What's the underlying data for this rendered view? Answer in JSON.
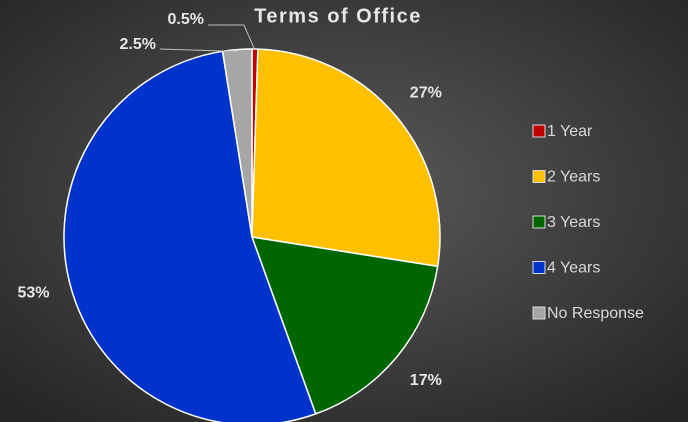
{
  "chart_data": {
    "type": "pie",
    "title": "Terms of Office",
    "categories": [
      "1 Year",
      "2 Years",
      "3 Years",
      "4 Years",
      "No Response"
    ],
    "values": [
      0.5,
      27,
      17,
      53,
      2.5
    ],
    "value_labels": [
      "0.5%",
      "27%",
      "17%",
      "53%",
      "2.5%"
    ],
    "colors": [
      "#c00000",
      "#ffc000",
      "#006600",
      "#0033cc",
      "#a6a6a6"
    ],
    "legend": "right"
  }
}
